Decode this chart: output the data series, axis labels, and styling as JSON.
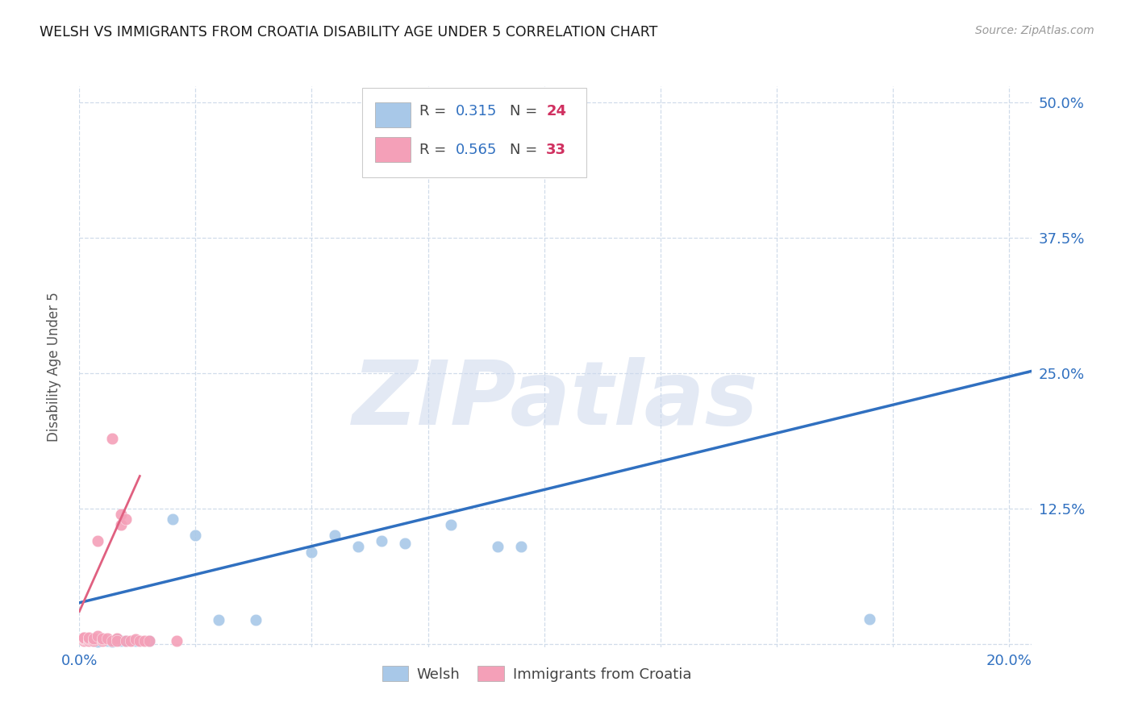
{
  "title": "WELSH VS IMMIGRANTS FROM CROATIA DISABILITY AGE UNDER 5 CORRELATION CHART",
  "source": "Source: ZipAtlas.com",
  "ylabel": "Disability Age Under 5",
  "xlim": [
    0.0,
    0.205
  ],
  "ylim": [
    -0.003,
    0.515
  ],
  "xtick_pos": [
    0.0,
    0.025,
    0.05,
    0.075,
    0.1,
    0.125,
    0.15,
    0.175,
    0.2
  ],
  "xticklabels": [
    "0.0%",
    "",
    "",
    "",
    "",
    "",
    "",
    "",
    "20.0%"
  ],
  "ytick_pos": [
    0.0,
    0.125,
    0.25,
    0.375,
    0.5
  ],
  "yticklabels_right": [
    "",
    "12.5%",
    "25.0%",
    "37.5%",
    "50.0%"
  ],
  "welsh_R": "0.315",
  "welsh_N": "24",
  "croatia_R": "0.565",
  "croatia_N": "33",
  "welsh_scatter_color": "#a8c8e8",
  "croatia_scatter_color": "#f4a0b8",
  "welsh_line_color": "#3070c0",
  "croatia_line_color": "#e06080",
  "grid_color": "#d0dcea",
  "bg_color": "#ffffff",
  "title_color": "#1a1a1a",
  "axis_label_color": "#555555",
  "tick_color": "#3070c0",
  "watermark_color": "#ccd8ec",
  "welsh_x": [
    0.002,
    0.003,
    0.004,
    0.005,
    0.006,
    0.007,
    0.008,
    0.009,
    0.01,
    0.012,
    0.015,
    0.02,
    0.025,
    0.03,
    0.038,
    0.05,
    0.055,
    0.06,
    0.065,
    0.07,
    0.08,
    0.09,
    0.095,
    0.17
  ],
  "welsh_y": [
    0.004,
    0.003,
    0.002,
    0.004,
    0.003,
    0.002,
    0.004,
    0.003,
    0.003,
    0.003,
    0.003,
    0.115,
    0.1,
    0.022,
    0.022,
    0.085,
    0.1,
    0.09,
    0.095,
    0.093,
    0.11,
    0.09,
    0.09,
    0.023
  ],
  "croatia_x": [
    0.001,
    0.001,
    0.001,
    0.001,
    0.001,
    0.001,
    0.002,
    0.002,
    0.002,
    0.002,
    0.003,
    0.003,
    0.003,
    0.004,
    0.004,
    0.005,
    0.005,
    0.005,
    0.006,
    0.007,
    0.007,
    0.008,
    0.008,
    0.009,
    0.009,
    0.01,
    0.01,
    0.011,
    0.012,
    0.013,
    0.014,
    0.015,
    0.021
  ],
  "croatia_y": [
    0.003,
    0.004,
    0.005,
    0.005,
    0.006,
    0.006,
    0.003,
    0.004,
    0.005,
    0.006,
    0.003,
    0.004,
    0.005,
    0.007,
    0.095,
    0.003,
    0.004,
    0.005,
    0.005,
    0.19,
    0.003,
    0.005,
    0.003,
    0.11,
    0.12,
    0.115,
    0.003,
    0.003,
    0.004,
    0.003,
    0.003,
    0.003,
    0.003
  ],
  "welsh_trend_x0": 0.0,
  "welsh_trend_y0": 0.038,
  "welsh_trend_x1": 0.205,
  "welsh_trend_y1": 0.252,
  "croatia_trend_x0": 0.0,
  "croatia_trend_y0": 0.03,
  "croatia_trend_x1": 0.013,
  "croatia_trend_y1": 0.155
}
